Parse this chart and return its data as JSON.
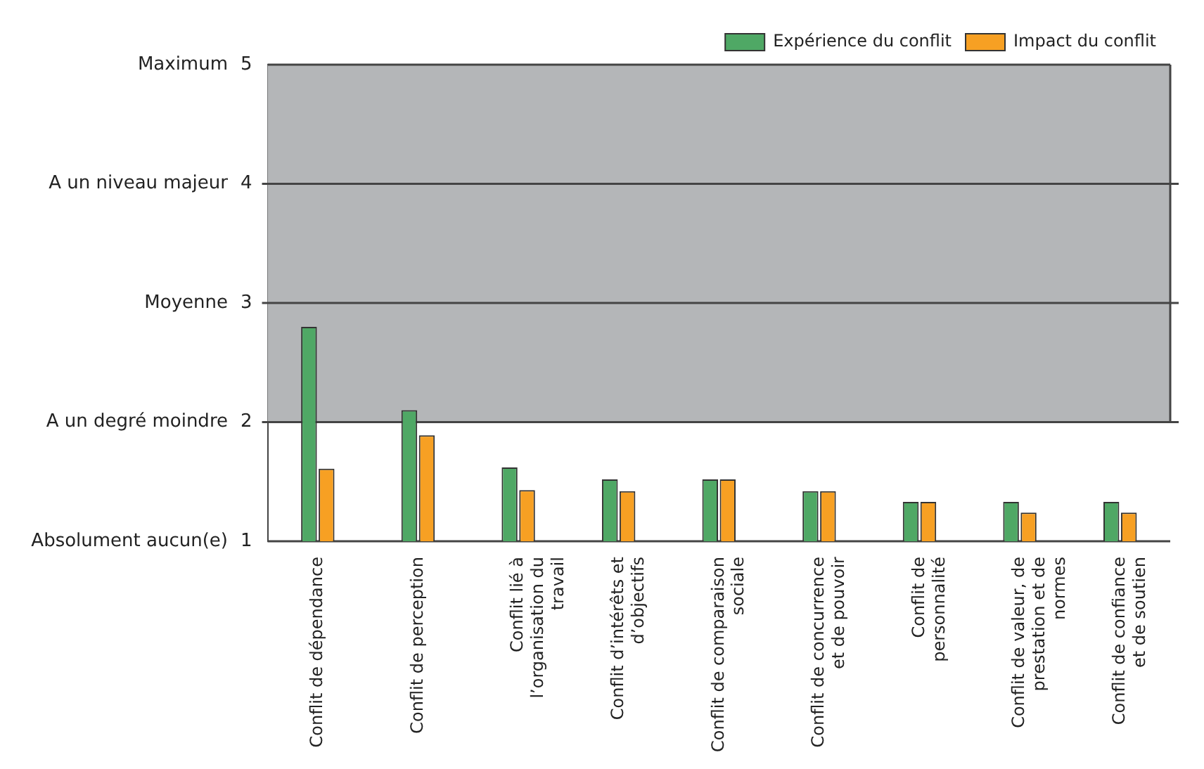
{
  "chart_data": {
    "type": "bar",
    "categories": [
      "Conflit de dépendance",
      "Conflit de perception",
      "Conflit lié à l’organisation du travail",
      "Conflit d’intérêts et d’objectifs",
      "Conflit de comparaison sociale",
      "Conflit de concurrence et de pouvoir",
      "Conflit de personnalité",
      "Conflit de valeur, de prestation et de normes",
      "Conflit de confiance et de soutien"
    ],
    "series": [
      {
        "name": "Expérience du conflit",
        "color": "#4fa865",
        "values": [
          2.8,
          2.1,
          1.62,
          1.52,
          1.52,
          1.42,
          1.33,
          1.33,
          1.33
        ]
      },
      {
        "name": "Impact du conflit",
        "color": "#f7a023",
        "values": [
          1.61,
          1.89,
          1.43,
          1.42,
          1.52,
          1.42,
          1.33,
          1.24,
          1.24
        ]
      }
    ],
    "ylim": [
      1,
      5
    ],
    "yticks": [
      1,
      2,
      3,
      4,
      5
    ],
    "annotations": [
      "Absolument aucun(e)",
      "Maximum"
    ],
    "ref_lines": [
      {
        "axis": "y",
        "value": 2,
        "label": "A un degré moindre",
        "color": "#444444"
      },
      {
        "axis": "y",
        "value": 3,
        "label": "Moyenne",
        "color": "#444444"
      },
      {
        "axis": "y",
        "value": 4,
        "label": "A un niveau majeur",
        "color": "#444444"
      }
    ],
    "bands": [
      {
        "axis": "y",
        "from": 2,
        "to": 5,
        "color": "#b4b6b8"
      }
    ],
    "legend": "top right"
  }
}
